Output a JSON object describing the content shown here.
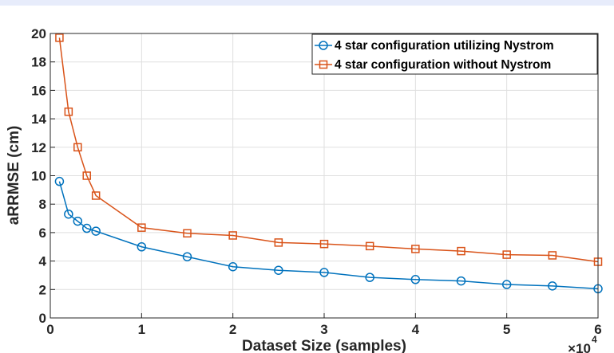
{
  "chart_data": {
    "type": "line",
    "title": "",
    "xlabel": "Dataset Size (samples)",
    "ylabel": "aRRMSE (cm)",
    "x_multiplier_label": "×10",
    "x_multiplier_exponent": "4",
    "xlim": [
      0,
      60000
    ],
    "ylim": [
      0,
      20
    ],
    "xticks": [
      0,
      10000,
      20000,
      30000,
      40000,
      50000,
      60000
    ],
    "xtick_labels": [
      "0",
      "1",
      "2",
      "3",
      "4",
      "5",
      "6"
    ],
    "yticks": [
      0,
      2,
      4,
      6,
      8,
      10,
      12,
      14,
      16,
      18,
      20
    ],
    "ytick_labels": [
      "0",
      "2",
      "4",
      "6",
      "8",
      "10",
      "12",
      "14",
      "16",
      "18",
      "20"
    ],
    "grid": true,
    "legend_position": "top-right",
    "x": [
      1000,
      2000,
      3000,
      4000,
      5000,
      10000,
      15000,
      20000,
      25000,
      30000,
      35000,
      40000,
      45000,
      50000,
      55000,
      60000
    ],
    "series": [
      {
        "name": "4 star configuration utilizing Nystrom",
        "color": "#0072BD",
        "marker": "circle",
        "values": [
          9.6,
          7.3,
          6.8,
          6.3,
          6.1,
          5.0,
          4.3,
          3.6,
          3.35,
          3.2,
          2.85,
          2.7,
          2.6,
          2.35,
          2.25,
          2.05
        ]
      },
      {
        "name": "4 star configuration without Nystrom",
        "color": "#D95319",
        "marker": "square",
        "values": [
          19.7,
          14.5,
          12.0,
          10.0,
          8.6,
          6.35,
          5.95,
          5.8,
          5.3,
          5.2,
          5.05,
          4.85,
          4.7,
          4.45,
          4.4,
          3.95
        ]
      }
    ]
  }
}
